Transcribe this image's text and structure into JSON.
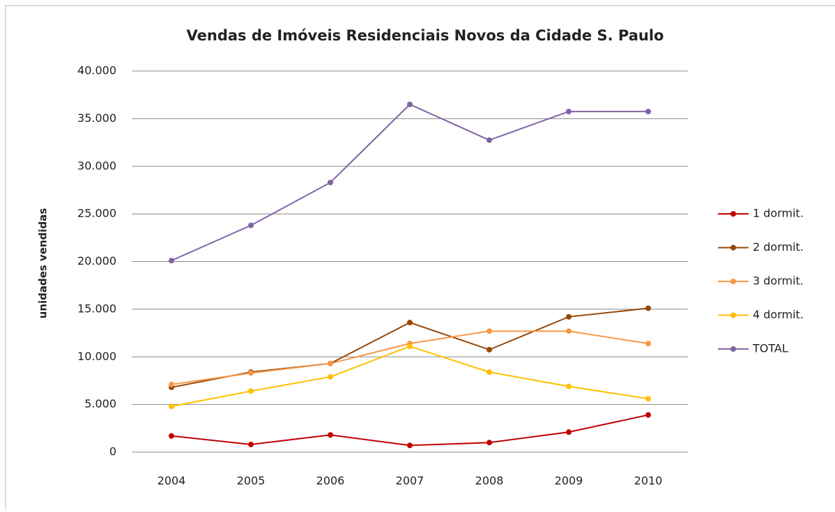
{
  "chart_data": {
    "type": "line",
    "title": "Vendas de Imóveis Residenciais Novos da Cidade S. Paulo",
    "y_label": "unidades vendidas",
    "categories": [
      "2004",
      "2005",
      "2006",
      "2007",
      "2008",
      "2009",
      "2010"
    ],
    "series": [
      {
        "name": "1 dormit.",
        "color": "#c00000",
        "values": [
          1700,
          800,
          1800,
          700,
          1000,
          2100,
          3900
        ]
      },
      {
        "name": "2 dormit.",
        "color": "#984807",
        "values": [
          6800,
          8400,
          9300,
          13600,
          10750,
          14200,
          15100
        ]
      },
      {
        "name": "3 dormit.",
        "color": "#f79646",
        "values": [
          7100,
          8300,
          9300,
          11400,
          12700,
          12700,
          11400
        ]
      },
      {
        "name": "4 dormit.",
        "color": "#ffc000",
        "values": [
          4800,
          6400,
          7900,
          11100,
          8400,
          6900,
          5600
        ]
      },
      {
        "name": "TOTAL",
        "color": "#8064a2",
        "values": [
          20100,
          23800,
          28300,
          36500,
          32750,
          35750,
          35750
        ]
      }
    ],
    "ylim": [
      0,
      40000
    ],
    "yticks": [
      0,
      {
        "value": 5000,
        "label": "5.000"
      },
      {
        "value": 10000,
        "label": "10.000"
      },
      {
        "value": 15000,
        "label": "15.000"
      },
      {
        "value": 20000,
        "label": "20.000"
      },
      {
        "value": 25000,
        "label": "25.000"
      },
      {
        "value": 30000,
        "label": "30.000"
      },
      {
        "value": 35000,
        "label": "35.000"
      },
      {
        "value": 40000,
        "label": "40.000"
      }
    ],
    "grid": true,
    "legend": "right"
  }
}
